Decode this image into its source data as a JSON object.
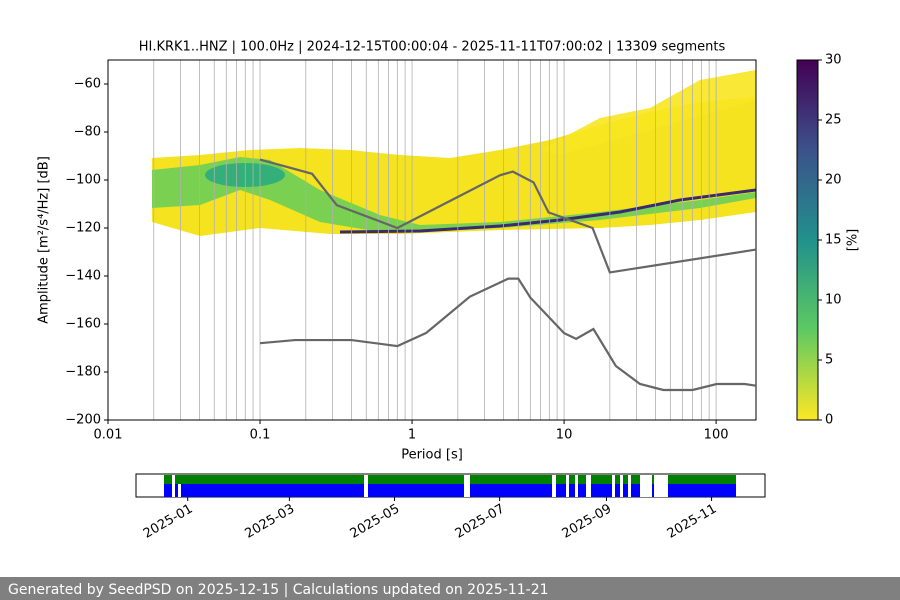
{
  "chart_data": [
    {
      "type": "line",
      "title": "HI.KRK1..HNZ | 100.0Hz | 2024-12-15T00:00:04 - 2025-11-11T07:00:02 | 13309 segments",
      "xlabel": "Period [s]",
      "ylabel": "Amplitude [m²/s⁴/Hz] [dB]",
      "xscale": "log",
      "xlim": [
        0.01,
        183
      ],
      "ylim": [
        -200,
        -50
      ],
      "xticks": [
        0.01,
        0.1,
        1,
        10,
        100
      ],
      "yticks": [
        {
          "value": -200,
          "label": "−200"
        },
        {
          "value": -180,
          "label": "−180"
        },
        {
          "value": -160,
          "label": "−160"
        },
        {
          "value": -140,
          "label": "−140"
        },
        {
          "value": -120,
          "label": "−120"
        },
        {
          "value": -100,
          "label": "−100"
        },
        {
          "value": -80,
          "label": "−80"
        },
        {
          "value": -60,
          "label": "−60"
        }
      ],
      "xgrid": [
        0.02,
        0.03,
        0.04,
        0.05,
        0.06,
        0.07,
        0.08,
        0.09,
        0.1,
        0.2,
        0.3,
        0.4,
        0.5,
        0.6,
        0.7,
        0.8,
        0.9,
        1,
        2,
        3,
        4,
        5,
        6,
        7,
        8,
        9,
        10,
        20,
        30,
        40,
        50,
        60,
        70,
        80,
        90,
        100
      ],
      "series": [
        {
          "color": "#666666",
          "x": [
            0.1,
            0.22,
            0.32,
            0.8,
            3.8,
            4.6,
            6.3,
            7.9,
            15.4,
            20,
            183
          ],
          "values": [
            -91.5,
            -97.4,
            -110.5,
            -120,
            -98,
            -96.5,
            -101,
            -113.5,
            -120,
            -138.5,
            -129
          ]
        },
        {
          "color": "#666666",
          "x": [
            0.1,
            0.17,
            0.4,
            0.8,
            1.24,
            2.4,
            4.3,
            5,
            6,
            10,
            12,
            15.6,
            21.9,
            31.6,
            45,
            70,
            101,
            154,
            183
          ],
          "values": [
            -168,
            -166.7,
            -166.7,
            -169.2,
            -163.7,
            -148.6,
            -141.1,
            -141.1,
            -149,
            -163.8,
            -166.2,
            -162.1,
            -177.5,
            -185,
            -187.5,
            -187.5,
            -185,
            -185,
            -185.7
          ]
        }
      ]
    },
    {
      "type": "colorbar",
      "ylabel": "[%]",
      "ylim": [
        0,
        30
      ],
      "yticks": [
        0,
        5,
        10,
        15,
        20,
        25,
        30
      ]
    },
    {
      "type": "timeline",
      "xlim": [
        "2024-12-02",
        "2025-12-02"
      ],
      "xticks": [
        {
          "value": "2025-01-01",
          "label": "2025-01"
        },
        {
          "value": "2025-03-01",
          "label": "2025-03"
        },
        {
          "value": "2025-05-01",
          "label": "2025-05"
        },
        {
          "value": "2025-07-01",
          "label": "2025-07"
        },
        {
          "value": "2025-09-01",
          "label": "2025-09"
        },
        {
          "value": "2025-11-01",
          "label": "2025-11"
        }
      ]
    }
  ],
  "footer": "Generated by SeedPSD on 2025-12-15 | Calculations updated on 2025-11-21"
}
